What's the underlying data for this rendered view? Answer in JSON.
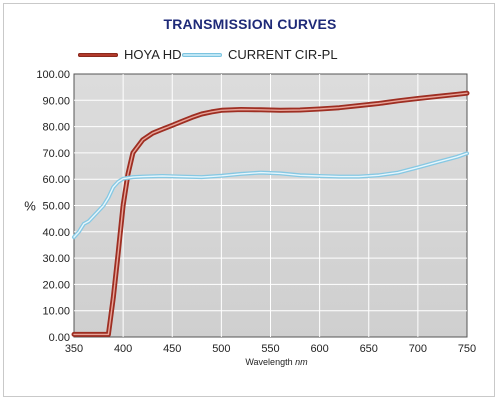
{
  "chart_data": {
    "type": "line",
    "title": "TRANSMISSION CURVES",
    "xlabel": "Wavelength",
    "xunit": "nm",
    "ylabel": "%",
    "xlim": [
      350,
      750
    ],
    "ylim": [
      0,
      100
    ],
    "grid": true,
    "legend_position": "top-left",
    "x_ticks": [
      "350",
      "400",
      "450",
      "500",
      "550",
      "600",
      "650",
      "700",
      "750"
    ],
    "y_ticks": [
      "0.00",
      "10.00",
      "20.00",
      "30.00",
      "40.00",
      "50.00",
      "60.00",
      "70.00",
      "80.00",
      "90.00",
      "100.00"
    ],
    "series": [
      {
        "name": "HOYA HD",
        "color": "#b23a2c",
        "points": [
          [
            350,
            1
          ],
          [
            360,
            1
          ],
          [
            370,
            1
          ],
          [
            380,
            1
          ],
          [
            385,
            1
          ],
          [
            390,
            15
          ],
          [
            395,
            32
          ],
          [
            400,
            50
          ],
          [
            405,
            62
          ],
          [
            410,
            70
          ],
          [
            420,
            75
          ],
          [
            430,
            77.5
          ],
          [
            440,
            79
          ],
          [
            450,
            80.5
          ],
          [
            460,
            82
          ],
          [
            470,
            83.5
          ],
          [
            480,
            84.8
          ],
          [
            490,
            85.6
          ],
          [
            500,
            86.2
          ],
          [
            520,
            86.5
          ],
          [
            540,
            86.4
          ],
          [
            560,
            86.2
          ],
          [
            580,
            86.3
          ],
          [
            600,
            86.7
          ],
          [
            620,
            87.2
          ],
          [
            640,
            88
          ],
          [
            660,
            88.8
          ],
          [
            680,
            89.8
          ],
          [
            700,
            90.7
          ],
          [
            720,
            91.5
          ],
          [
            740,
            92.3
          ],
          [
            750,
            92.7
          ]
        ]
      },
      {
        "name": "CURRENT CIR-PL",
        "color": "#8fd0ea",
        "points": [
          [
            350,
            38
          ],
          [
            355,
            40
          ],
          [
            360,
            43
          ],
          [
            365,
            44
          ],
          [
            370,
            46
          ],
          [
            375,
            48
          ],
          [
            380,
            50
          ],
          [
            385,
            53
          ],
          [
            390,
            57
          ],
          [
            395,
            59
          ],
          [
            400,
            60.2
          ],
          [
            405,
            60.5
          ],
          [
            410,
            60.8
          ],
          [
            420,
            61
          ],
          [
            440,
            61.2
          ],
          [
            460,
            61
          ],
          [
            480,
            60.8
          ],
          [
            500,
            61.3
          ],
          [
            520,
            62
          ],
          [
            540,
            62.5
          ],
          [
            560,
            62.2
          ],
          [
            580,
            61.5
          ],
          [
            600,
            61.2
          ],
          [
            620,
            61
          ],
          [
            640,
            61
          ],
          [
            660,
            61.5
          ],
          [
            680,
            62.5
          ],
          [
            700,
            64.5
          ],
          [
            720,
            66.5
          ],
          [
            740,
            68.5
          ],
          [
            750,
            69.8
          ]
        ]
      }
    ]
  },
  "legend": {
    "hoya_label": "HOYA HD",
    "cirpl_label": "CURRENT CIR-PL"
  }
}
